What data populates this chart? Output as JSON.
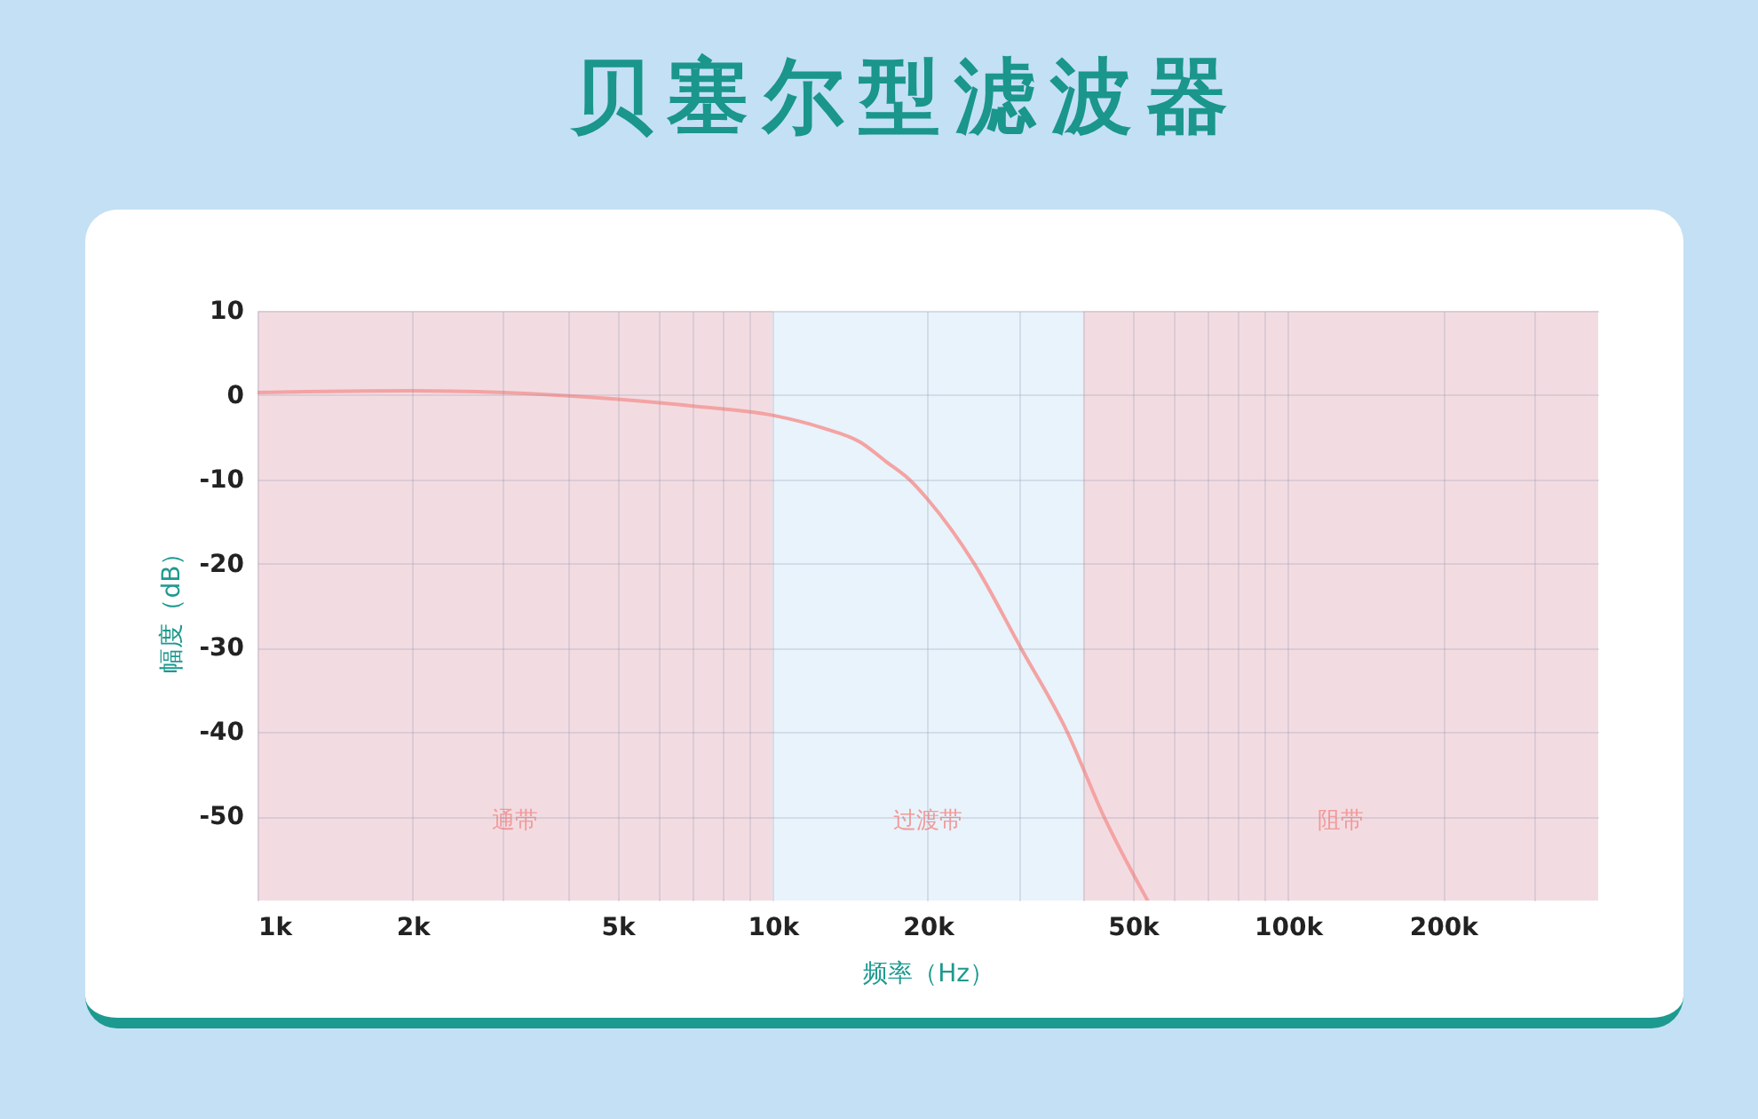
{
  "chart_data": {
    "type": "line",
    "title": "贝塞尔型滤波器",
    "xlabel": "频率（Hz）",
    "ylabel": "幅度（dB）",
    "x": [
      1000,
      2000,
      3000,
      5000,
      7000,
      10000,
      12500,
      14800,
      16600,
      18400,
      20000,
      24600,
      30300,
      37300,
      43900,
      53400
    ],
    "series": [
      {
        "color": "#f4a3a3",
        "values": [
          0.3,
          0.5,
          0.3,
          -0.5,
          -1.3,
          -2.4,
          -3.9,
          -5.6,
          -7.9,
          -10,
          -12.4,
          -20,
          -30,
          -40,
          -50,
          -60
        ]
      }
    ],
    "xlim": [
      1000,
      400000
    ],
    "xticks": [
      {
        "value": 1000,
        "label": "1k"
      },
      {
        "value": 2000,
        "label": "2k"
      },
      {
        "value": 3000,
        "label": null
      },
      {
        "value": 4000,
        "label": null
      },
      {
        "value": 5000,
        "label": "5k"
      },
      {
        "value": 6000,
        "label": null
      },
      {
        "value": 7000,
        "label": null
      },
      {
        "value": 8000,
        "label": null
      },
      {
        "value": 9000,
        "label": null
      },
      {
        "value": 10000,
        "label": "10k"
      },
      {
        "value": 20000,
        "label": "20k"
      },
      {
        "value": 30000,
        "label": null
      },
      {
        "value": 40000,
        "label": null
      },
      {
        "value": 50000,
        "label": "50k"
      },
      {
        "value": 60000,
        "label": null
      },
      {
        "value": 70000,
        "label": null
      },
      {
        "value": 80000,
        "label": null
      },
      {
        "value": 90000,
        "label": null
      },
      {
        "value": 100000,
        "label": "100k"
      },
      {
        "value": 200000,
        "label": "200k"
      },
      {
        "value": 300000,
        "label": null
      }
    ],
    "ylim": [
      -60,
      10
    ],
    "yticks": [
      10,
      0,
      -10,
      -20,
      -30,
      -40,
      -50
    ],
    "bands": [
      {
        "axis": "x",
        "from": 1000,
        "to": 10000,
        "label": "通带",
        "color": "#f2dce2"
      },
      {
        "axis": "x",
        "from": 10000,
        "to": 40000,
        "label": "过渡带",
        "color": "#e8f3fb"
      },
      {
        "axis": "x",
        "from": 40000,
        "to": 400000,
        "label": "阻带",
        "color": "#f2dce2"
      }
    ],
    "grid": true,
    "log": "x",
    "line_style": "solid"
  }
}
